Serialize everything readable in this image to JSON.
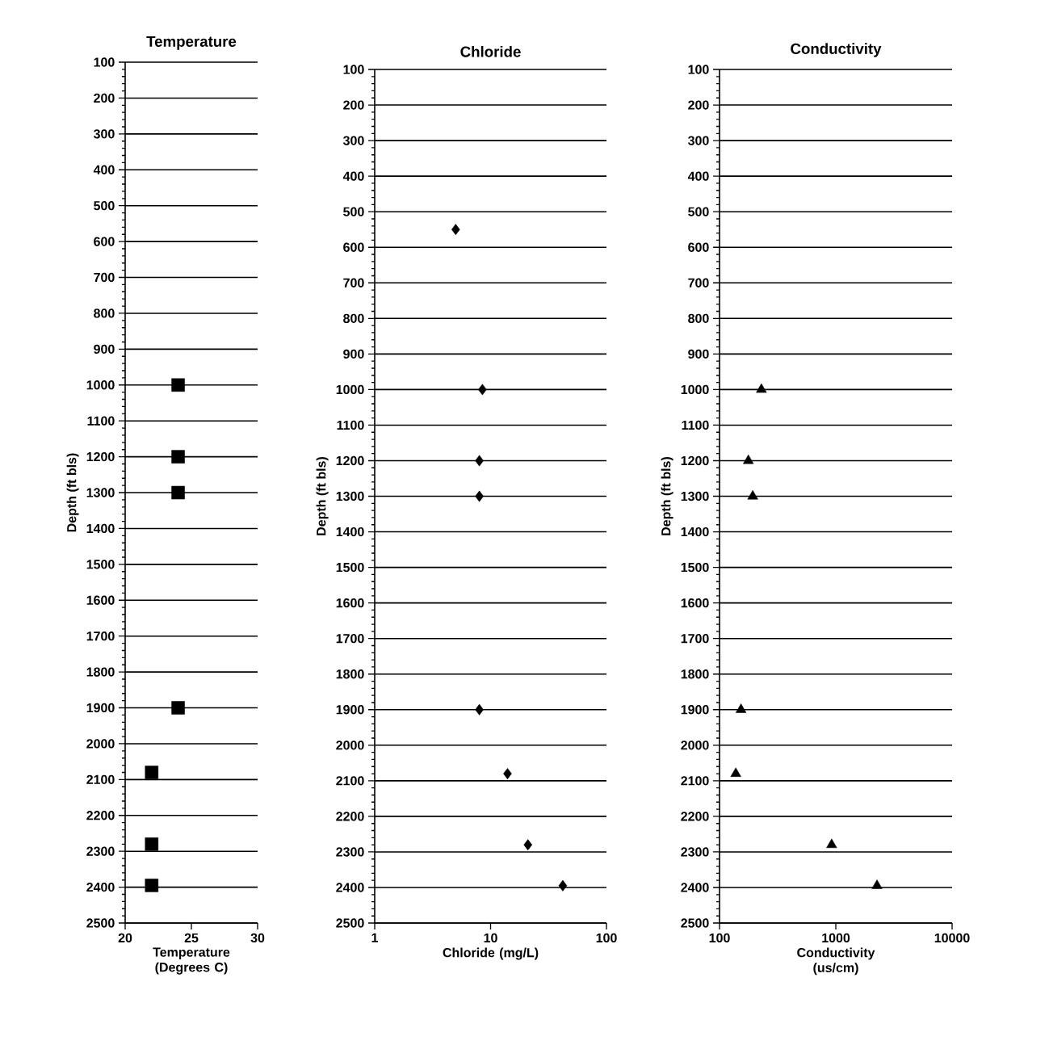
{
  "chart_data": [
    {
      "type": "scatter",
      "title": "Temperature",
      "xlabel": "Temperature (Degrees C)",
      "ylabel": "Depth (ft bls)",
      "marker": "square",
      "grid": "y",
      "xlim": [
        20,
        30
      ],
      "xticks": [
        20,
        25,
        30
      ],
      "ylim": [
        2500,
        100
      ],
      "yticks": [
        100,
        200,
        300,
        400,
        500,
        600,
        700,
        800,
        900,
        1000,
        1100,
        1200,
        1300,
        1400,
        1500,
        1600,
        1700,
        1800,
        1900,
        2000,
        2100,
        2200,
        2300,
        2400,
        2500
      ],
      "series": [
        {
          "color": "#000000",
          "x": [
            24,
            24,
            24,
            24,
            22,
            22,
            22
          ],
          "values": [
            1000,
            1200,
            1300,
            1900,
            2080,
            2280,
            2395
          ]
        }
      ]
    },
    {
      "type": "scatter",
      "title": "Chloride",
      "xlabel": "Chloride (mg/L)",
      "ylabel": "Depth (ft bls)",
      "marker": "diamond",
      "grid": "y",
      "log": "x",
      "xlim": [
        1,
        100
      ],
      "xticks": [
        1,
        10,
        100
      ],
      "ylim": [
        2500,
        100
      ],
      "yticks": [
        100,
        200,
        300,
        400,
        500,
        600,
        700,
        800,
        900,
        1000,
        1100,
        1200,
        1300,
        1400,
        1500,
        1600,
        1700,
        1800,
        1900,
        2000,
        2100,
        2200,
        2300,
        2400,
        2500
      ],
      "series": [
        {
          "color": "#000000",
          "x": [
            5,
            8.5,
            8,
            8,
            8,
            14,
            21,
            42
          ],
          "values": [
            550,
            1000,
            1200,
            1300,
            1900,
            2080,
            2280,
            2395
          ]
        }
      ]
    },
    {
      "type": "scatter",
      "title": "Conductivity",
      "xlabel": "Conductivity (us/cm)",
      "ylabel": "Depth (ft bls)",
      "marker": "triangle",
      "grid": "y",
      "log": "x",
      "xlim": [
        100,
        10000
      ],
      "xticks": [
        100,
        1000,
        10000
      ],
      "ylim": [
        2500,
        100
      ],
      "yticks": [
        100,
        200,
        300,
        400,
        500,
        600,
        700,
        800,
        900,
        1000,
        1100,
        1200,
        1300,
        1400,
        1500,
        1600,
        1700,
        1800,
        1900,
        2000,
        2100,
        2200,
        2300,
        2400,
        2500
      ],
      "series": [
        {
          "color": "#000000",
          "x": [
            229,
            177,
            193,
            153,
            138,
            921,
            2260
          ],
          "values": [
            1000,
            1200,
            1300,
            1900,
            2080,
            2280,
            2395
          ]
        }
      ]
    }
  ]
}
